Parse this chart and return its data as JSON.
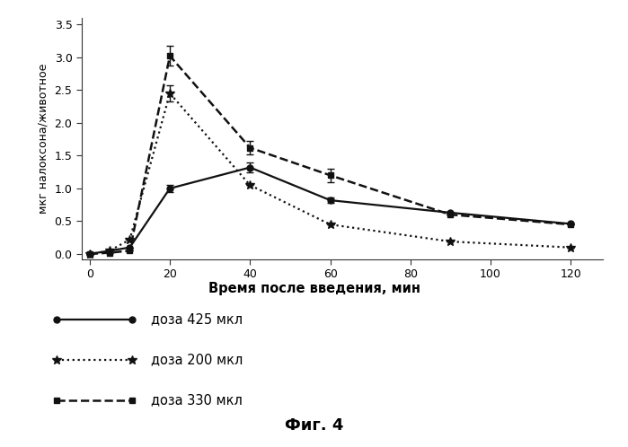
{
  "title": "Фиг. 4",
  "xlabel": "Время после введения, мин",
  "ylabel": "мкг налоксона/животное",
  "xlim": [
    -2,
    128
  ],
  "ylim": [
    -0.08,
    3.6
  ],
  "xticks": [
    0,
    20,
    40,
    60,
    80,
    100,
    120
  ],
  "yticks": [
    0.0,
    0.5,
    1.0,
    1.5,
    2.0,
    2.5,
    3.0,
    3.5
  ],
  "series": [
    {
      "label": "доза 425 мкл",
      "x": [
        0,
        10,
        20,
        40,
        60,
        90,
        120
      ],
      "y": [
        0.0,
        0.1,
        1.0,
        1.32,
        0.82,
        0.63,
        0.46
      ],
      "yerr": [
        0.0,
        0.0,
        0.06,
        0.08,
        0.04,
        0.0,
        0.0
      ],
      "color": "#111111",
      "linestyle": "-",
      "marker": "o",
      "markersize": 5,
      "linewidth": 1.6,
      "dashes": []
    },
    {
      "label": "доза 200 мкл",
      "x": [
        0,
        5,
        10,
        20,
        40,
        60,
        90,
        120
      ],
      "y": [
        0.0,
        0.05,
        0.22,
        2.45,
        1.05,
        0.45,
        0.19,
        0.1
      ],
      "yerr": [
        0.0,
        0.0,
        0.0,
        0.12,
        0.0,
        0.0,
        0.0,
        0.0
      ],
      "color": "#111111",
      "linestyle": ":",
      "marker": "*",
      "markersize": 7,
      "linewidth": 1.6,
      "dashes": []
    },
    {
      "label": "доза 330 мкл",
      "x": [
        0,
        5,
        10,
        20,
        40,
        60,
        90,
        120
      ],
      "y": [
        0.0,
        0.02,
        0.05,
        3.02,
        1.62,
        1.2,
        0.6,
        0.45
      ],
      "yerr": [
        0.0,
        0.0,
        0.0,
        0.15,
        0.1,
        0.1,
        0.0,
        0.0
      ],
      "color": "#111111",
      "linestyle": "--",
      "marker": "s",
      "markersize": 4,
      "linewidth": 1.8,
      "dashes": [
        6,
        3
      ]
    }
  ],
  "background_color": "#ffffff"
}
